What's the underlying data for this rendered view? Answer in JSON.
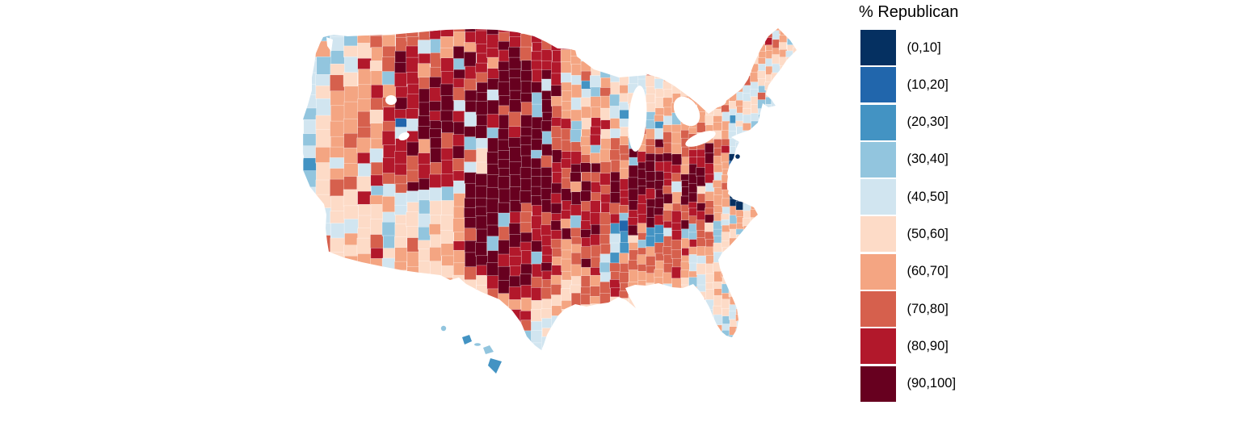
{
  "legend": {
    "title": "% Republican",
    "entries": [
      {
        "label": "(0,10]",
        "color": "#053061"
      },
      {
        "label": "(10,20]",
        "color": "#2166ac"
      },
      {
        "label": "(20,30]",
        "color": "#4393c3"
      },
      {
        "label": "(30,40]",
        "color": "#92c5de"
      },
      {
        "label": "(40,50]",
        "color": "#d1e5f0"
      },
      {
        "label": "(50,60]",
        "color": "#fddbc7"
      },
      {
        "label": "(60,70]",
        "color": "#f4a582"
      },
      {
        "label": "(70,80]",
        "color": "#d6604d"
      },
      {
        "label": "(80,90]",
        "color": "#b2182b"
      },
      {
        "label": "(90,100]",
        "color": "#67001f"
      }
    ]
  },
  "map": {
    "region": "United States counties, % Republican vote share by decile bin",
    "background": "#ffffff",
    "palette": [
      "#053061",
      "#2166ac",
      "#4393c3",
      "#92c5de",
      "#d1e5f0",
      "#fddbc7",
      "#f4a582",
      "#d6604d",
      "#b2182b",
      "#67001f"
    ],
    "raster_cols": 31,
    "raster_rows": [
      ".34676778788888765555555555566.",
      ".43567787988998864555545555565.",
      "44566788888899886635455455555..",
      "45667888989999986465555556645..",
      "44667889999999976654556656654..",
      "45677788999999887665546666443..",
      "356778888849999776676777774 5..",
      "25667888885999998777898886 45..",
      "35666778889999988888998986 54..",
      "46564644469999888778998976 65..",
      ".455555456999888887788777665...",
      ".45553545689998878727283736....",
      "...565656899988777727776655....",
      "......655589988767376676565....",
      "..........58987657....65555....",
      "...........5865........5554....",
      "............484........544.....",
      ".............34.........43.....",
      "..............3.........4......",
      "..............................."
    ],
    "dc_dot_bin": 0,
    "hawaii_islands": [
      {
        "name": "kauai",
        "bin": 3
      },
      {
        "name": "oahu",
        "bin": 2
      },
      {
        "name": "molokai",
        "bin": 3
      },
      {
        "name": "maui",
        "bin": 3
      },
      {
        "name": "hawaii-island",
        "bin": 2
      }
    ]
  }
}
